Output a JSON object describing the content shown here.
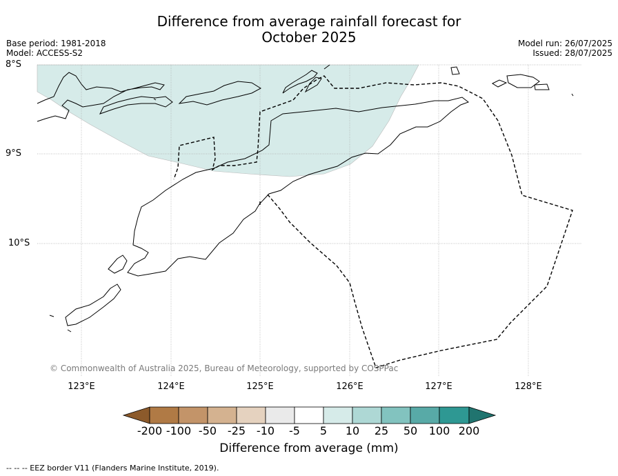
{
  "title_line1": "Difference from average rainfall forecast for",
  "title_line2": "October 2025",
  "base_period": "Base period: 1981-2018",
  "model": "Model: ACCESS-S2",
  "model_run": "Model run: 26/07/2025",
  "issued": "Issued: 28/07/2025",
  "lat_labels": [
    "8°S",
    "9°S",
    "10°S"
  ],
  "lon_labels": [
    "123°E",
    "124°E",
    "125°E",
    "126°E",
    "127°E",
    "128°E"
  ],
  "copyright": "© Commonwealth of Australia 2025, Bureau of Meteorology, supported by COSPPac",
  "colorbar": {
    "ticks": [
      "-200",
      "-100",
      "-50",
      "-25",
      "-10",
      "-5",
      "5",
      "10",
      "25",
      "50",
      "100",
      "200"
    ],
    "colors": [
      "#8c5a2b",
      "#b07a45",
      "#c39469",
      "#d4b290",
      "#e5d2bf",
      "#eaeaea",
      "#ffffff",
      "#d6ebe9",
      "#aed8d5",
      "#82c3bf",
      "#58aaa7",
      "#2e9893",
      "#20746f"
    ],
    "label": "Difference from average (mm)"
  },
  "footnote": "-- -- -- EEZ border V11 (Flanders Marine Institute, 2019).",
  "map": {
    "shaded_region_color": "#d6ebe9",
    "coastline_color": "#000000",
    "eez_color": "#000000"
  }
}
